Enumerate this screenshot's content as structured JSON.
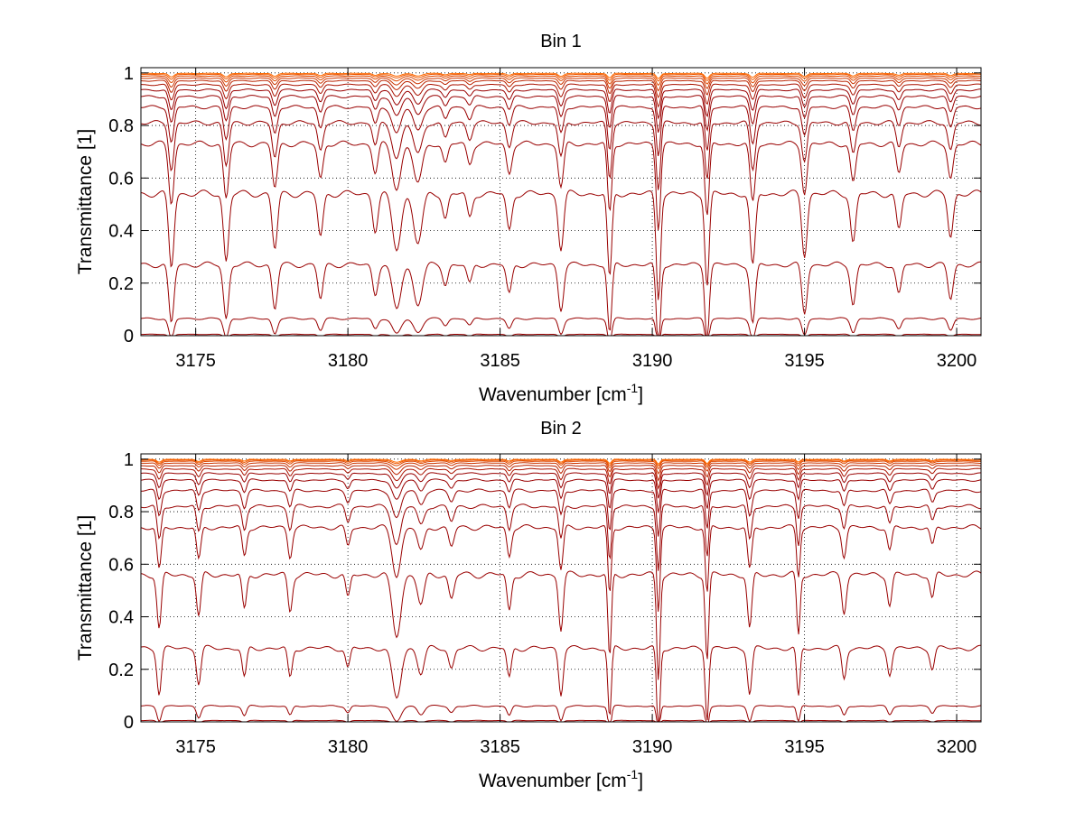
{
  "chart_data": [
    {
      "type": "line",
      "title": "Bin 1",
      "xlabel": "Wavenumber [cm",
      "xlabel_sup": "-1",
      "xlabel_tail": "]",
      "ylabel": "Transmittance [1]",
      "xlim": [
        3173.2,
        3200.8
      ],
      "ylim": [
        0,
        1.02
      ],
      "xticks": [
        3175,
        3180,
        3185,
        3190,
        3195,
        3200
      ],
      "yticks": [
        0,
        0.2,
        0.4,
        0.6,
        0.8,
        1
      ],
      "ytick_labels": [
        "0",
        "0.2",
        "0.4",
        "0.6",
        "0.8",
        "1"
      ],
      "grid": true,
      "line_color": "#990000",
      "line_color_light": "#ff6a00",
      "baseline_levels": [
        0.0,
        0.005,
        0.065,
        0.27,
        0.54,
        0.73,
        0.81,
        0.87,
        0.91,
        0.935,
        0.955,
        0.97,
        0.98,
        0.988,
        0.994,
        0.998
      ],
      "absorption_lines": [
        {
          "x": 3174.2,
          "depth": 0.6,
          "width": 0.12
        },
        {
          "x": 3176.0,
          "depth": 0.55,
          "width": 0.12
        },
        {
          "x": 3177.6,
          "depth": 0.45,
          "width": 0.12
        },
        {
          "x": 3179.1,
          "depth": 0.35,
          "width": 0.12
        },
        {
          "x": 3180.9,
          "depth": 0.3,
          "width": 0.12
        },
        {
          "x": 3181.6,
          "depth": 0.45,
          "width": 0.2
        },
        {
          "x": 3182.3,
          "depth": 0.4,
          "width": 0.2
        },
        {
          "x": 3183.2,
          "depth": 0.2,
          "width": 0.12
        },
        {
          "x": 3184.0,
          "depth": 0.2,
          "width": 0.12
        },
        {
          "x": 3185.3,
          "depth": 0.3,
          "width": 0.12
        },
        {
          "x": 3187.0,
          "depth": 0.45,
          "width": 0.12
        },
        {
          "x": 3188.6,
          "depth": 0.7,
          "width": 0.1
        },
        {
          "x": 3190.2,
          "depth": 0.85,
          "width": 0.1
        },
        {
          "x": 3191.8,
          "depth": 0.75,
          "width": 0.1
        },
        {
          "x": 3193.3,
          "depth": 0.6,
          "width": 0.12
        },
        {
          "x": 3195.0,
          "depth": 0.5,
          "width": 0.12
        },
        {
          "x": 3196.6,
          "depth": 0.4,
          "width": 0.12
        },
        {
          "x": 3198.1,
          "depth": 0.3,
          "width": 0.12
        },
        {
          "x": 3199.8,
          "depth": 0.35,
          "width": 0.12
        }
      ]
    },
    {
      "type": "line",
      "title": "Bin 2",
      "xlabel": "Wavenumber [cm",
      "xlabel_sup": "-1",
      "xlabel_tail": "]",
      "ylabel": "Transmittance [1]",
      "xlim": [
        3173.2,
        3200.8
      ],
      "ylim": [
        0,
        1.02
      ],
      "xticks": [
        3175,
        3180,
        3185,
        3190,
        3195,
        3200
      ],
      "yticks": [
        0,
        0.2,
        0.4,
        0.6,
        0.8,
        1
      ],
      "ytick_labels": [
        "0",
        "0.2",
        "0.4",
        "0.6",
        "0.8",
        "1"
      ],
      "grid": true,
      "line_color": "#990000",
      "line_color_light": "#ff6a00",
      "baseline_levels": [
        0.0,
        0.005,
        0.06,
        0.28,
        0.56,
        0.74,
        0.82,
        0.88,
        0.92,
        0.945,
        0.962,
        0.975,
        0.985,
        0.992,
        0.996,
        0.999
      ],
      "absorption_lines": [
        {
          "x": 3173.8,
          "depth": 0.45,
          "width": 0.1
        },
        {
          "x": 3175.1,
          "depth": 0.35,
          "width": 0.1
        },
        {
          "x": 3176.6,
          "depth": 0.3,
          "width": 0.1
        },
        {
          "x": 3178.1,
          "depth": 0.3,
          "width": 0.1
        },
        {
          "x": 3180.0,
          "depth": 0.2,
          "width": 0.1
        },
        {
          "x": 3181.6,
          "depth": 0.5,
          "width": 0.2
        },
        {
          "x": 3182.4,
          "depth": 0.25,
          "width": 0.15
        },
        {
          "x": 3183.4,
          "depth": 0.2,
          "width": 0.12
        },
        {
          "x": 3185.3,
          "depth": 0.3,
          "width": 0.1
        },
        {
          "x": 3187.0,
          "depth": 0.45,
          "width": 0.1
        },
        {
          "x": 3188.6,
          "depth": 0.7,
          "width": 0.08
        },
        {
          "x": 3190.2,
          "depth": 0.85,
          "width": 0.08
        },
        {
          "x": 3191.8,
          "depth": 0.7,
          "width": 0.08
        },
        {
          "x": 3193.2,
          "depth": 0.45,
          "width": 0.1
        },
        {
          "x": 3194.8,
          "depth": 0.5,
          "width": 0.08
        },
        {
          "x": 3196.3,
          "depth": 0.3,
          "width": 0.1
        },
        {
          "x": 3197.8,
          "depth": 0.25,
          "width": 0.1
        },
        {
          "x": 3199.2,
          "depth": 0.2,
          "width": 0.1
        }
      ]
    }
  ]
}
